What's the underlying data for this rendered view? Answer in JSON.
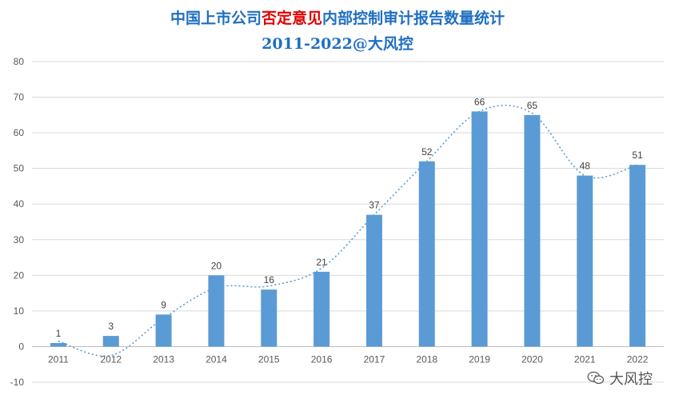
{
  "title": {
    "part1": "中国上市公司",
    "part2_red": "否定意见",
    "part3": "内部控制审计报告数量统计",
    "line2": "2011-2022@大风控"
  },
  "watermark": {
    "text": "大风控",
    "icon": "wechat-icon"
  },
  "colors": {
    "bar": "#5b9bd5",
    "title": "#1f6fc1",
    "title_red": "#e00000",
    "trend": "#5b9bd5",
    "grid": "#d9d9d9"
  },
  "chart_data": {
    "type": "bar",
    "categories": [
      "2011",
      "2012",
      "2013",
      "2014",
      "2015",
      "2016",
      "2017",
      "2018",
      "2019",
      "2020",
      "2021",
      "2022"
    ],
    "values": [
      1,
      3,
      9,
      20,
      16,
      21,
      37,
      52,
      66,
      65,
      48,
      51
    ],
    "data_labels": [
      "1",
      "3",
      "9",
      "20",
      "16",
      "21",
      "37",
      "52",
      "66",
      "65",
      "48",
      "51"
    ],
    "ylim": [
      -10,
      80
    ],
    "yticks": [
      -10,
      0,
      10,
      20,
      30,
      40,
      50,
      60,
      70,
      80
    ],
    "ytick_labels": [
      "-10",
      "0",
      "10",
      "20",
      "30",
      "40",
      "50",
      "60",
      "70",
      "80"
    ],
    "grid": true,
    "trendline": {
      "type": "polynomial",
      "style": "dotted"
    },
    "xlabel": "",
    "ylabel": ""
  }
}
